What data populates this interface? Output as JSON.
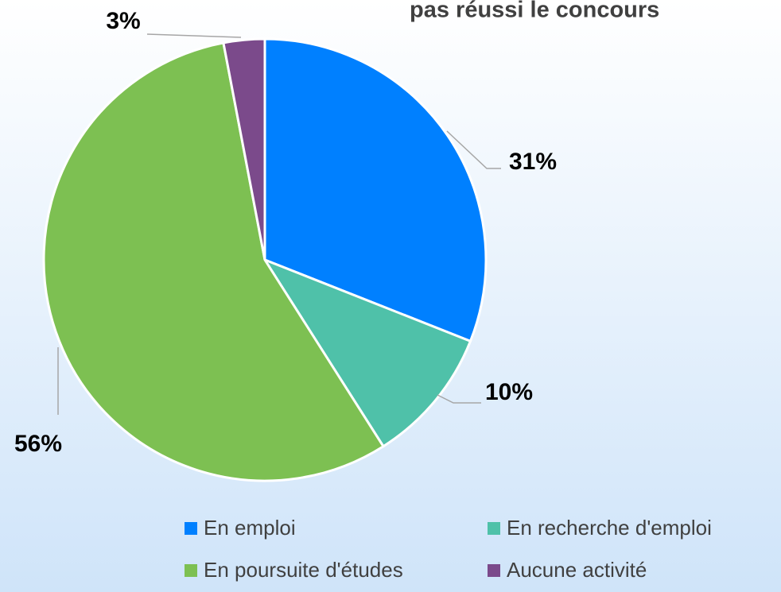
{
  "chart_data": {
    "type": "pie",
    "title": "pas réussi le concours",
    "categories": [
      "En emploi",
      "En recherche d'emploi",
      "En poursuite d'études",
      "Aucune activité"
    ],
    "values": [
      31,
      10,
      56,
      3
    ],
    "value_labels": [
      "31%",
      "10%",
      "56%",
      "3%"
    ],
    "colors": [
      "#0080ff",
      "#4fc1a9",
      "#7dc052",
      "#7b4a8b"
    ],
    "legend": "bottom"
  }
}
